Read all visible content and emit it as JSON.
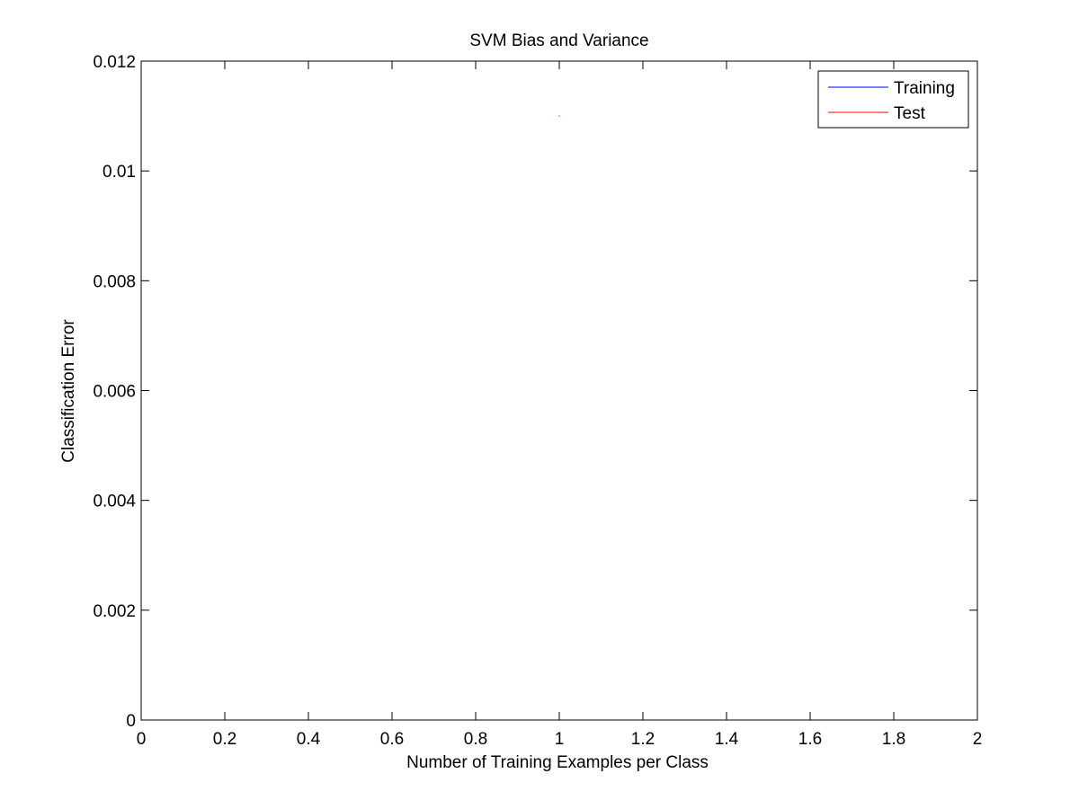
{
  "chart_data": {
    "type": "line",
    "title": "SVM Bias and Variance",
    "xlabel": "Number of Training Examples per Class",
    "ylabel": "Classification Error",
    "xlim": [
      0,
      2
    ],
    "ylim": [
      0,
      0.012
    ],
    "xticks": [
      "0",
      "0.2",
      "0.4",
      "0.6",
      "0.8",
      "1",
      "1.2",
      "1.4",
      "1.6",
      "1.8",
      "2"
    ],
    "yticks": [
      "0",
      "0.002",
      "0.004",
      "0.006",
      "0.008",
      "0.01",
      "0.012"
    ],
    "grid": false,
    "legend_position": "top-right",
    "series": [
      {
        "name": "Training",
        "color": "#0000ff",
        "x": [
          1
        ],
        "y": [
          0.011
        ]
      },
      {
        "name": "Test",
        "color": "#ff0000",
        "x": [
          1
        ],
        "y": [
          0.011
        ]
      }
    ]
  }
}
